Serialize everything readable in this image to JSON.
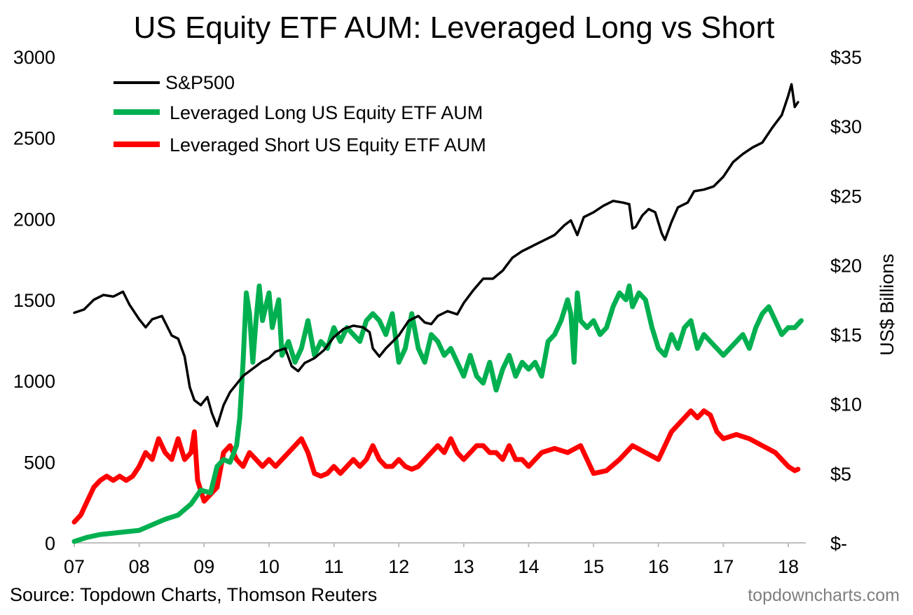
{
  "chart_data": {
    "type": "line",
    "title": "US Equity ETF AUM: Leveraged Long vs Short",
    "xlabel": "",
    "ylabel_left": "",
    "ylabel_right": "US$ Billions",
    "x_ticks": [
      "07",
      "08",
      "09",
      "10",
      "11",
      "12",
      "13",
      "14",
      "15",
      "16",
      "17",
      "18"
    ],
    "x_range": [
      2007.0,
      2018.2
    ],
    "ylim_left": [
      0,
      3000
    ],
    "y_ticks_left": [
      "0",
      "500",
      "1000",
      "1500",
      "2000",
      "2500",
      "3000"
    ],
    "ylim_right": [
      0,
      35
    ],
    "y_ticks_right": [
      "$-",
      "$5",
      "$10",
      "$15",
      "$20",
      "$25",
      "$30",
      "$35"
    ],
    "legend_position": "top-left",
    "series": [
      {
        "name": "S&P500",
        "axis": "left",
        "color": "#000000",
        "x": [
          2007.0,
          2007.15,
          2007.3,
          2007.45,
          2007.6,
          2007.75,
          2007.85,
          2008.0,
          2008.1,
          2008.2,
          2008.35,
          2008.5,
          2008.6,
          2008.7,
          2008.78,
          2008.85,
          2008.95,
          2009.05,
          2009.12,
          2009.2,
          2009.3,
          2009.4,
          2009.5,
          2009.6,
          2009.7,
          2009.8,
          2009.9,
          2010.0,
          2010.1,
          2010.25,
          2010.35,
          2010.45,
          2010.55,
          2010.7,
          2010.85,
          2011.0,
          2011.15,
          2011.3,
          2011.45,
          2011.55,
          2011.6,
          2011.7,
          2011.8,
          2011.9,
          2012.0,
          2012.15,
          2012.3,
          2012.4,
          2012.5,
          2012.6,
          2012.75,
          2012.9,
          2013.0,
          2013.15,
          2013.3,
          2013.45,
          2013.6,
          2013.75,
          2013.9,
          2014.0,
          2014.1,
          2014.25,
          2014.4,
          2014.55,
          2014.65,
          2014.75,
          2014.85,
          2015.0,
          2015.15,
          2015.3,
          2015.45,
          2015.55,
          2015.6,
          2015.65,
          2015.75,
          2015.85,
          2015.95,
          2016.05,
          2016.1,
          2016.2,
          2016.3,
          2016.45,
          2016.55,
          2016.7,
          2016.85,
          2017.0,
          2017.15,
          2017.3,
          2017.45,
          2017.6,
          2017.75,
          2017.9,
          2018.0,
          2018.05,
          2018.1,
          2018.15
        ],
        "values": [
          1420,
          1440,
          1500,
          1530,
          1520,
          1550,
          1470,
          1380,
          1330,
          1380,
          1400,
          1280,
          1260,
          1150,
          960,
          880,
          850,
          900,
          800,
          720,
          850,
          930,
          980,
          1030,
          1060,
          1090,
          1120,
          1140,
          1180,
          1200,
          1090,
          1060,
          1110,
          1140,
          1190,
          1270,
          1320,
          1340,
          1330,
          1300,
          1200,
          1150,
          1200,
          1240,
          1280,
          1370,
          1400,
          1360,
          1350,
          1400,
          1430,
          1410,
          1480,
          1560,
          1630,
          1630,
          1680,
          1760,
          1800,
          1820,
          1840,
          1870,
          1900,
          1960,
          1990,
          1900,
          2010,
          2040,
          2080,
          2110,
          2100,
          2090,
          1940,
          1950,
          2020,
          2060,
          2040,
          1910,
          1870,
          1980,
          2070,
          2100,
          2170,
          2180,
          2200,
          2260,
          2350,
          2400,
          2440,
          2470,
          2560,
          2640,
          2760,
          2830,
          2690,
          2720
        ]
      },
      {
        "name": "Leveraged Long US Equity ETF AUM",
        "axis": "right",
        "color": "#00b050",
        "x": [
          2007.0,
          2007.2,
          2007.4,
          2007.6,
          2007.8,
          2008.0,
          2008.2,
          2008.4,
          2008.6,
          2008.8,
          2008.95,
          2009.1,
          2009.2,
          2009.3,
          2009.4,
          2009.5,
          2009.55,
          2009.6,
          2009.65,
          2009.7,
          2009.75,
          2009.8,
          2009.85,
          2009.9,
          2010.0,
          2010.05,
          2010.1,
          2010.15,
          2010.2,
          2010.3,
          2010.4,
          2010.5,
          2010.6,
          2010.7,
          2010.8,
          2010.9,
          2011.0,
          2011.1,
          2011.2,
          2011.3,
          2011.4,
          2011.5,
          2011.6,
          2011.7,
          2011.8,
          2011.9,
          2012.0,
          2012.1,
          2012.2,
          2012.3,
          2012.4,
          2012.5,
          2012.6,
          2012.7,
          2012.8,
          2012.9,
          2013.0,
          2013.1,
          2013.2,
          2013.3,
          2013.4,
          2013.5,
          2013.6,
          2013.7,
          2013.8,
          2013.9,
          2014.0,
          2014.1,
          2014.2,
          2014.3,
          2014.4,
          2014.5,
          2014.6,
          2014.65,
          2014.7,
          2014.75,
          2014.8,
          2014.9,
          2015.0,
          2015.1,
          2015.2,
          2015.3,
          2015.4,
          2015.5,
          2015.55,
          2015.6,
          2015.7,
          2015.8,
          2015.9,
          2016.0,
          2016.1,
          2016.2,
          2016.3,
          2016.4,
          2016.5,
          2016.6,
          2016.7,
          2016.8,
          2016.9,
          2017.0,
          2017.1,
          2017.2,
          2017.3,
          2017.4,
          2017.5,
          2017.6,
          2017.7,
          2017.8,
          2017.9,
          2018.0,
          2018.1,
          2018.2
        ],
        "values": [
          0.1,
          0.4,
          0.6,
          0.7,
          0.8,
          0.9,
          1.3,
          1.7,
          2.0,
          2.8,
          3.8,
          3.6,
          5.5,
          6.0,
          5.8,
          7.0,
          9.0,
          13.0,
          18.0,
          16.5,
          13.0,
          16.0,
          18.5,
          16.0,
          18.0,
          15.5,
          16.5,
          17.5,
          13.5,
          14.5,
          13.0,
          14.0,
          16.0,
          13.5,
          14.5,
          14.0,
          15.5,
          14.5,
          15.5,
          15.0,
          14.5,
          16.0,
          16.5,
          16.0,
          15.0,
          16.5,
          13.0,
          14.0,
          16.5,
          14.0,
          13.0,
          15.0,
          14.5,
          13.5,
          14.0,
          13.0,
          12.0,
          13.5,
          12.0,
          11.5,
          13.0,
          11.0,
          12.5,
          13.5,
          12.0,
          13.0,
          12.5,
          13.0,
          12.0,
          14.5,
          15.0,
          16.0,
          17.5,
          16.5,
          13.0,
          18.0,
          16.0,
          15.5,
          16.0,
          15.0,
          15.5,
          17.0,
          18.0,
          17.5,
          18.5,
          17.0,
          18.0,
          17.5,
          15.5,
          14.0,
          13.5,
          15.0,
          14.0,
          15.5,
          16.0,
          14.0,
          15.0,
          14.5,
          14.0,
          13.5,
          14.0,
          14.5,
          15.0,
          14.0,
          15.5,
          16.5,
          17.0,
          16.0,
          15.0,
          15.5,
          15.5,
          16.0
        ]
      },
      {
        "name": "Leveraged Short US Equity ETF AUM",
        "axis": "right",
        "color": "#ff0000",
        "x": [
          2007.0,
          2007.1,
          2007.2,
          2007.3,
          2007.4,
          2007.5,
          2007.6,
          2007.7,
          2007.8,
          2007.9,
          2008.0,
          2008.1,
          2008.2,
          2008.3,
          2008.4,
          2008.5,
          2008.6,
          2008.7,
          2008.8,
          2008.85,
          2008.9,
          2009.0,
          2009.1,
          2009.2,
          2009.3,
          2009.4,
          2009.5,
          2009.6,
          2009.7,
          2009.8,
          2009.9,
          2010.0,
          2010.1,
          2010.2,
          2010.3,
          2010.4,
          2010.5,
          2010.6,
          2010.7,
          2010.8,
          2010.9,
          2011.0,
          2011.1,
          2011.2,
          2011.3,
          2011.4,
          2011.5,
          2011.6,
          2011.7,
          2011.8,
          2011.9,
          2012.0,
          2012.1,
          2012.2,
          2012.3,
          2012.4,
          2012.5,
          2012.6,
          2012.7,
          2012.8,
          2012.9,
          2013.0,
          2013.1,
          2013.2,
          2013.3,
          2013.4,
          2013.5,
          2013.6,
          2013.7,
          2013.8,
          2013.9,
          2014.0,
          2014.2,
          2014.4,
          2014.6,
          2014.8,
          2015.0,
          2015.2,
          2015.4,
          2015.6,
          2015.8,
          2016.0,
          2016.2,
          2016.4,
          2016.5,
          2016.6,
          2016.7,
          2016.8,
          2016.9,
          2017.0,
          2017.2,
          2017.4,
          2017.6,
          2017.8,
          2018.0,
          2018.1,
          2018.15
        ],
        "values": [
          1.5,
          2.0,
          3.0,
          4.0,
          4.5,
          4.8,
          4.5,
          4.8,
          4.5,
          4.8,
          5.5,
          6.5,
          6.0,
          7.5,
          6.5,
          6.0,
          7.5,
          6.0,
          6.5,
          8.0,
          4.5,
          3.0,
          3.5,
          4.0,
          6.5,
          7.0,
          6.0,
          5.5,
          6.5,
          6.0,
          5.5,
          6.0,
          5.5,
          6.0,
          6.5,
          7.0,
          7.5,
          6.5,
          5.0,
          4.8,
          5.0,
          5.5,
          5.0,
          5.5,
          6.0,
          5.5,
          6.0,
          7.0,
          6.0,
          5.5,
          5.5,
          6.0,
          5.5,
          5.3,
          5.5,
          6.0,
          6.5,
          7.0,
          6.5,
          7.5,
          6.5,
          6.0,
          6.5,
          7.0,
          7.0,
          6.5,
          6.5,
          6.0,
          7.0,
          6.0,
          6.0,
          5.5,
          6.5,
          6.8,
          6.5,
          7.0,
          5.0,
          5.2,
          6.0,
          7.0,
          6.5,
          6.0,
          8.0,
          9.0,
          9.5,
          9.0,
          9.5,
          9.2,
          8.0,
          7.5,
          7.8,
          7.5,
          7.0,
          6.5,
          5.5,
          5.2,
          5.3
        ]
      }
    ],
    "source": "Source: Topdown Charts, Thomson Reuters",
    "watermark": "topdowncharts.com"
  }
}
